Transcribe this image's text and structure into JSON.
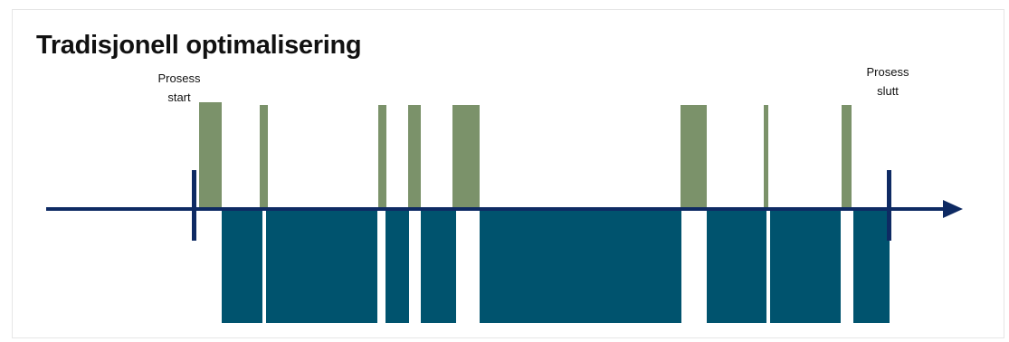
{
  "title": "Tradisjonell optimalisering",
  "markers": {
    "start": {
      "line1": "Prosess",
      "line2": "start"
    },
    "end": {
      "line1": "Prosess",
      "line2": "slutt"
    }
  },
  "colors": {
    "axis": "#0e2a63",
    "above": "#7b926a",
    "below": "#00536e"
  }
}
